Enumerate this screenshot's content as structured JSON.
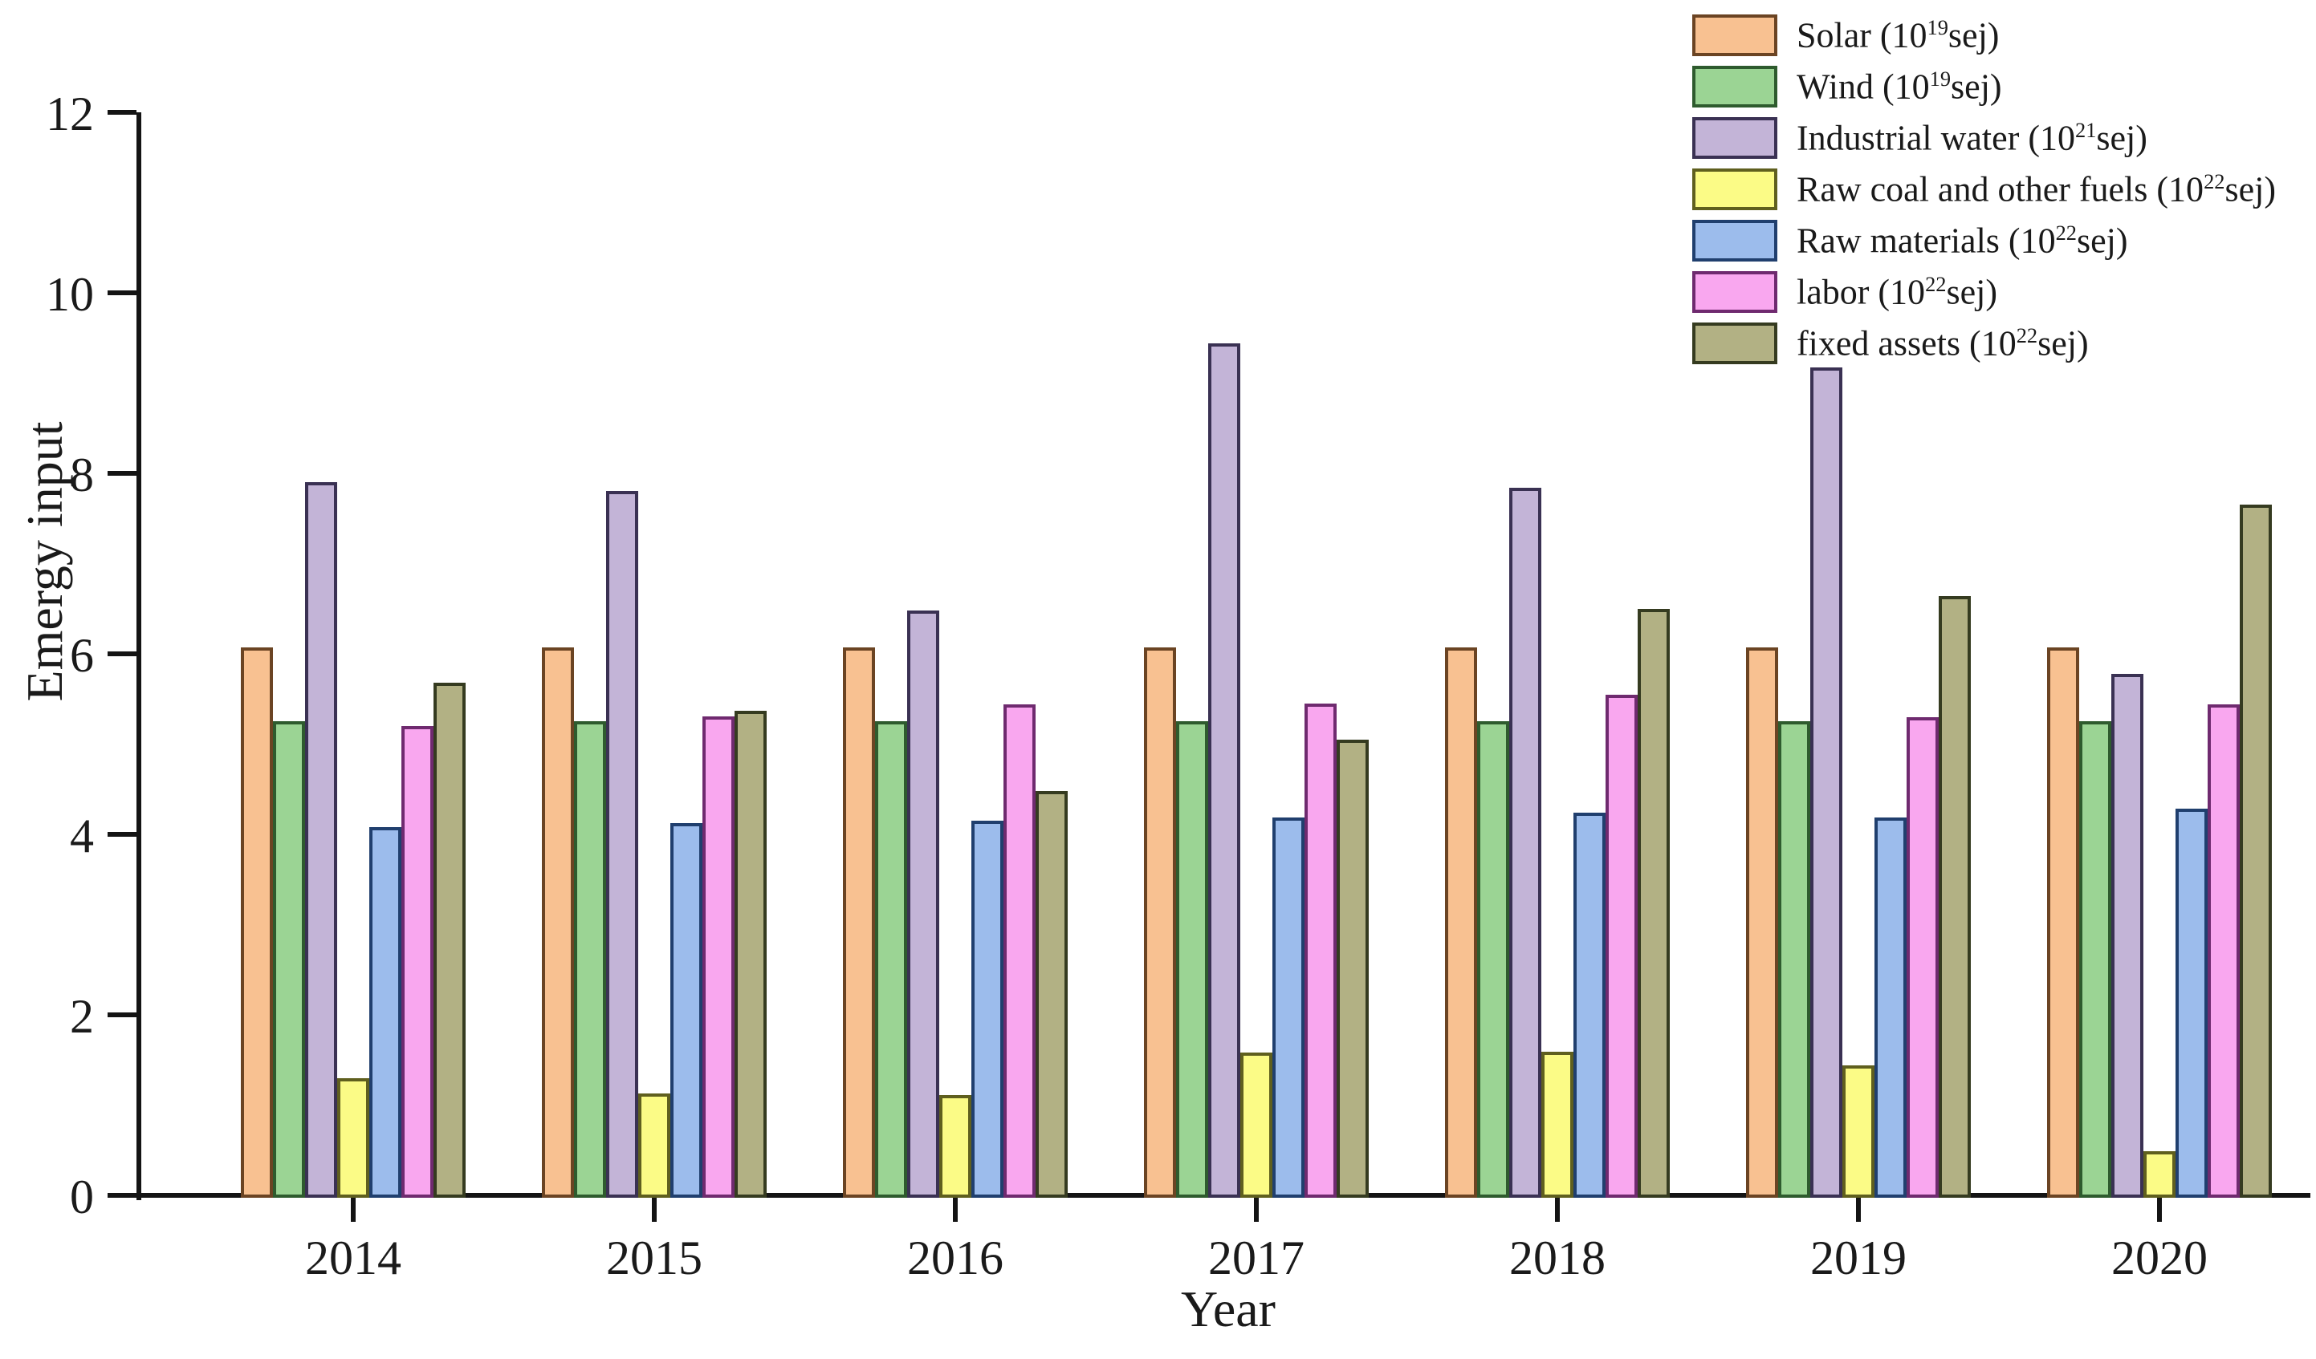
{
  "figure": {
    "background": "#ffffff",
    "text_color": "#1a1a1a",
    "axis_color": "#141414"
  },
  "chart_data": {
    "type": "bar",
    "title": "",
    "xlabel": "Year",
    "ylabel": "Emergy input",
    "ylim": [
      0,
      12
    ],
    "yticks": [
      0,
      2,
      4,
      6,
      8,
      10,
      12
    ],
    "grid": false,
    "legend_position": "top-right",
    "categories": [
      "2014",
      "2015",
      "2016",
      "2017",
      "2018",
      "2019",
      "2020"
    ],
    "series": [
      {
        "name": "Solar",
        "legend_prefix": "Solar (10",
        "legend_exp": "19",
        "legend_suffix": "sej)",
        "fill": "#f8c191",
        "stroke": "#6b4423",
        "values": [
          6.07,
          6.07,
          6.07,
          6.07,
          6.07,
          6.07,
          6.07
        ]
      },
      {
        "name": "Wind",
        "legend_prefix": "Wind (10",
        "legend_exp": "19",
        "legend_suffix": "sej)",
        "fill": "#9bd494",
        "stroke": "#2e5b2e",
        "values": [
          5.25,
          5.25,
          5.25,
          5.25,
          5.25,
          5.25,
          5.25
        ]
      },
      {
        "name": "Industrial water",
        "legend_prefix": "Industrial water (10",
        "legend_exp": "21",
        "legend_suffix": "sej)",
        "fill": "#c3b4d7",
        "stroke": "#3a3153",
        "values": [
          7.9,
          7.8,
          6.48,
          9.44,
          7.84,
          9.17,
          5.78
        ]
      },
      {
        "name": "Raw coal and other fuels",
        "legend_prefix": "Raw coal and other fuels (10",
        "legend_exp": "22",
        "legend_suffix": "sej)",
        "fill": "#fbfb86",
        "stroke": "#5f5f1e",
        "values": [
          1.3,
          1.13,
          1.11,
          1.58,
          1.59,
          1.44,
          0.49
        ]
      },
      {
        "name": "Raw materials",
        "legend_prefix": "Raw materials (10",
        "legend_exp": "22",
        "legend_suffix": "sej)",
        "fill": "#9cbcec",
        "stroke": "#203f6e",
        "values": [
          4.08,
          4.12,
          4.15,
          4.19,
          4.24,
          4.19,
          4.28
        ]
      },
      {
        "name": "labor",
        "legend_prefix": "labor (10",
        "legend_exp": "22",
        "legend_suffix": "sej)",
        "fill": "#f9a7ef",
        "stroke": "#6f2a6f",
        "values": [
          5.2,
          5.31,
          5.44,
          5.45,
          5.55,
          5.3,
          5.44
        ]
      },
      {
        "name": "fixed assets",
        "legend_prefix": "fixed assets (10",
        "legend_exp": "22",
        "legend_suffix": "sej)",
        "fill": "#b2b184",
        "stroke": "#353b20",
        "values": [
          5.68,
          5.37,
          4.48,
          5.05,
          6.5,
          6.64,
          7.65
        ]
      }
    ]
  }
}
